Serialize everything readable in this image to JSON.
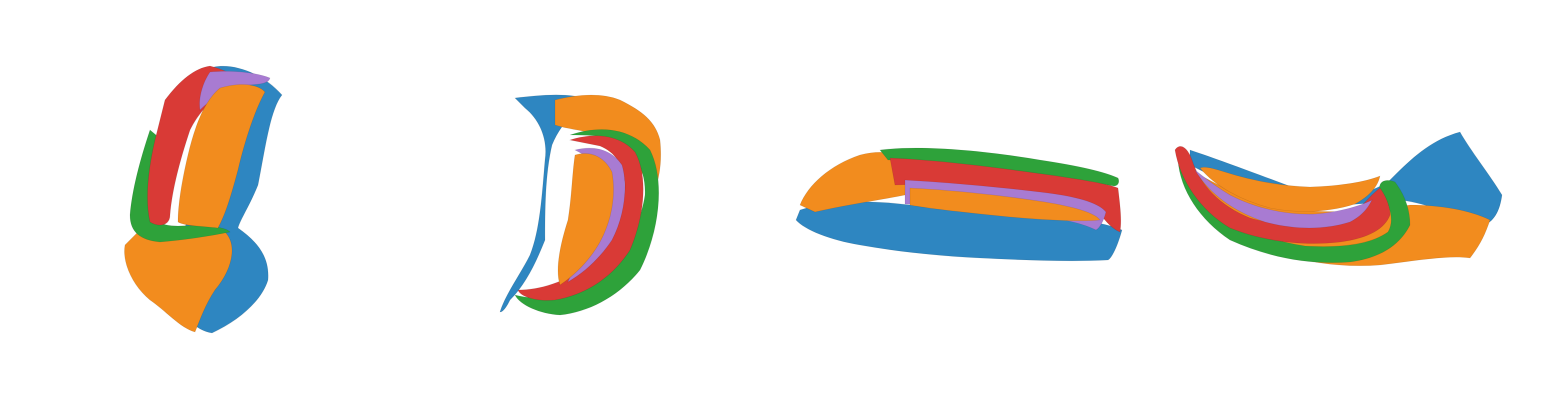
{
  "figure": {
    "background": "#ffffff",
    "subject": "hippocampal-surface-renderings",
    "views": [
      {
        "id": "view-1",
        "orientation": "vertical-hook"
      },
      {
        "id": "view-2",
        "orientation": "vertical-crescent"
      },
      {
        "id": "view-3",
        "orientation": "horizontal-bar"
      },
      {
        "id": "view-4",
        "orientation": "horizontal-curve"
      }
    ],
    "region_colors": {
      "blue": "#2e86c1",
      "orange": "#f28c1e",
      "red": "#d93a36",
      "green": "#2ea23a",
      "purple": "#a87bd2"
    }
  }
}
